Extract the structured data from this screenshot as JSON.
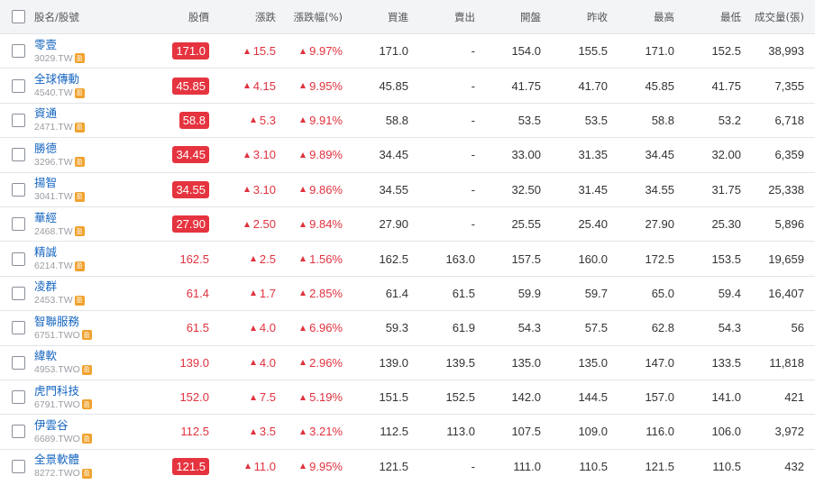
{
  "colors": {
    "up": "#e0323e",
    "limit_up_bg": "#e5343f",
    "link": "#1565c0",
    "header_bg": "#f3f4f6",
    "tag_bg": "#f0a22e"
  },
  "header": {
    "name_code": "股名/股號",
    "price": "股價",
    "change": "漲跌",
    "change_pct": "漲跌幅(%)",
    "bid": "買進",
    "ask": "賣出",
    "open": "開盤",
    "prev_close": "昨收",
    "high": "最高",
    "low": "最低",
    "volume": "成交量(張)"
  },
  "tag_label": "盈",
  "icons": {
    "checkbox": "checkbox-icon",
    "up_arrow": "up-triangle-icon",
    "tag": "tag-icon"
  },
  "rows": [
    {
      "name": "零壹",
      "code": "3029.TW",
      "price": "171.0",
      "limit_up": true,
      "change": "15.5",
      "change_pct": "9.97%",
      "bid": "171.0",
      "ask": "-",
      "open": "154.0",
      "prev_close": "155.5",
      "high": "171.0",
      "low": "152.5",
      "volume": "38,993"
    },
    {
      "name": "全球傳動",
      "code": "4540.TW",
      "price": "45.85",
      "limit_up": true,
      "change": "4.15",
      "change_pct": "9.95%",
      "bid": "45.85",
      "ask": "-",
      "open": "41.75",
      "prev_close": "41.70",
      "high": "45.85",
      "low": "41.75",
      "volume": "7,355"
    },
    {
      "name": "資通",
      "code": "2471.TW",
      "price": "58.8",
      "limit_up": true,
      "change": "5.3",
      "change_pct": "9.91%",
      "bid": "58.8",
      "ask": "-",
      "open": "53.5",
      "prev_close": "53.5",
      "high": "58.8",
      "low": "53.2",
      "volume": "6,718"
    },
    {
      "name": "勝德",
      "code": "3296.TW",
      "price": "34.45",
      "limit_up": true,
      "change": "3.10",
      "change_pct": "9.89%",
      "bid": "34.45",
      "ask": "-",
      "open": "33.00",
      "prev_close": "31.35",
      "high": "34.45",
      "low": "32.00",
      "volume": "6,359"
    },
    {
      "name": "揚智",
      "code": "3041.TW",
      "price": "34.55",
      "limit_up": true,
      "change": "3.10",
      "change_pct": "9.86%",
      "bid": "34.55",
      "ask": "-",
      "open": "32.50",
      "prev_close": "31.45",
      "high": "34.55",
      "low": "31.75",
      "volume": "25,338"
    },
    {
      "name": "華經",
      "code": "2468.TW",
      "price": "27.90",
      "limit_up": true,
      "change": "2.50",
      "change_pct": "9.84%",
      "bid": "27.90",
      "ask": "-",
      "open": "25.55",
      "prev_close": "25.40",
      "high": "27.90",
      "low": "25.30",
      "volume": "5,896"
    },
    {
      "name": "精誠",
      "code": "6214.TW",
      "price": "162.5",
      "limit_up": false,
      "change": "2.5",
      "change_pct": "1.56%",
      "bid": "162.5",
      "ask": "163.0",
      "open": "157.5",
      "prev_close": "160.0",
      "high": "172.5",
      "low": "153.5",
      "volume": "19,659"
    },
    {
      "name": "凌群",
      "code": "2453.TW",
      "price": "61.4",
      "limit_up": false,
      "change": "1.7",
      "change_pct": "2.85%",
      "bid": "61.4",
      "ask": "61.5",
      "open": "59.9",
      "prev_close": "59.7",
      "high": "65.0",
      "low": "59.4",
      "volume": "16,407"
    },
    {
      "name": "智聯服務",
      "code": "6751.TWO",
      "price": "61.5",
      "limit_up": false,
      "change": "4.0",
      "change_pct": "6.96%",
      "bid": "59.3",
      "ask": "61.9",
      "open": "54.3",
      "prev_close": "57.5",
      "high": "62.8",
      "low": "54.3",
      "volume": "56"
    },
    {
      "name": "緯軟",
      "code": "4953.TWO",
      "price": "139.0",
      "limit_up": false,
      "change": "4.0",
      "change_pct": "2.96%",
      "bid": "139.0",
      "ask": "139.5",
      "open": "135.0",
      "prev_close": "135.0",
      "high": "147.0",
      "low": "133.5",
      "volume": "11,818"
    },
    {
      "name": "虎門科技",
      "code": "6791.TWO",
      "price": "152.0",
      "limit_up": false,
      "change": "7.5",
      "change_pct": "5.19%",
      "bid": "151.5",
      "ask": "152.5",
      "open": "142.0",
      "prev_close": "144.5",
      "high": "157.0",
      "low": "141.0",
      "volume": "421"
    },
    {
      "name": "伊雲谷",
      "code": "6689.TWO",
      "price": "112.5",
      "limit_up": false,
      "change": "3.5",
      "change_pct": "3.21%",
      "bid": "112.5",
      "ask": "113.0",
      "open": "107.5",
      "prev_close": "109.0",
      "high": "116.0",
      "low": "106.0",
      "volume": "3,972"
    },
    {
      "name": "全景軟體",
      "code": "8272.TWO",
      "price": "121.5",
      "limit_up": true,
      "change": "11.0",
      "change_pct": "9.95%",
      "bid": "121.5",
      "ask": "-",
      "open": "111.0",
      "prev_close": "110.5",
      "high": "121.5",
      "low": "110.5",
      "volume": "432"
    }
  ]
}
